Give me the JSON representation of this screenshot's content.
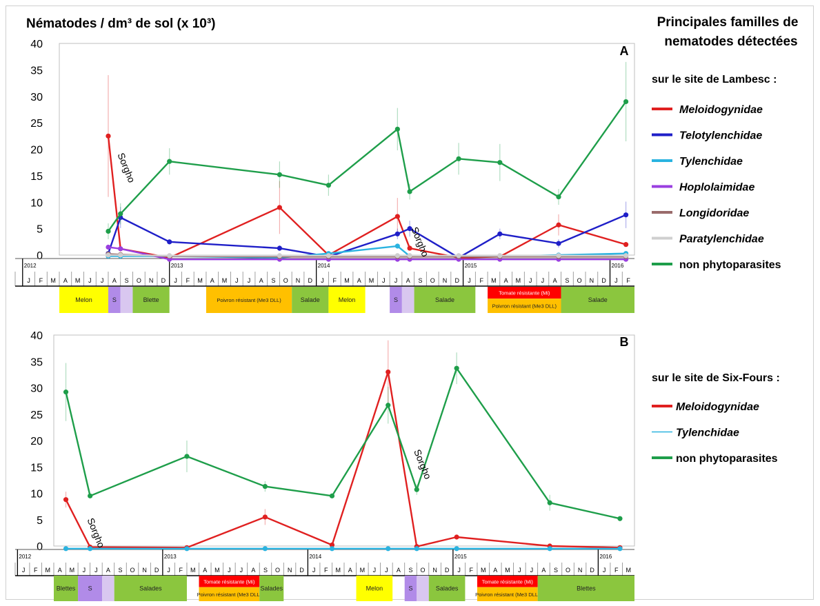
{
  "header": {
    "title": "Nématodes / dm³ de sol (x 10³)",
    "legend_title": [
      "Principales familles de",
      "nematodes détectées"
    ]
  },
  "colors": {
    "Meloidogynidae": "#e02020",
    "Telotylenchidae": "#1f1fc8",
    "Tylenchidae": "#2ab3e0",
    "Hoplolaimidae": "#9a3fe0",
    "Longidoridae": "#9a6b6b",
    "Paratylenchidae": "#cfcfcf",
    "non phytoparasites": "#1e9e4a"
  },
  "months": [
    "J",
    "F",
    "M",
    "A",
    "M",
    "J",
    "J",
    "A",
    "S",
    "O",
    "N",
    "D"
  ],
  "chart_data": [
    {
      "type": "line",
      "panel_label": "A",
      "site_label": "sur le site de Lambesc :",
      "ylim": [
        0,
        40
      ],
      "yticks": [
        0,
        5,
        10,
        15,
        20,
        25,
        30,
        35,
        40
      ],
      "x_range": [
        "2012-04",
        "2016-02"
      ],
      "years": [
        2012,
        2013,
        2014,
        2015,
        2016
      ],
      "annotations": [
        {
          "text": "Sorgho",
          "date": "2012-08",
          "y": 19
        },
        {
          "text": "Sorgho",
          "date": "2014-08",
          "y": 5
        }
      ],
      "series": [
        {
          "name": "Meloidogynidae",
          "italic": true,
          "points": [
            [
              "2012-08-01",
              22.5
            ],
            [
              "2012-09-01",
              1.2
            ],
            [
              "2013-01-01",
              -0.5
            ],
            [
              "2013-10-01",
              9
            ],
            [
              "2014-02-01",
              0
            ],
            [
              "2014-07-20",
              7.3
            ],
            [
              "2014-08-20",
              1.3
            ],
            [
              "2014-12-20",
              -0.5
            ],
            [
              "2015-04-01",
              -0.3
            ],
            [
              "2015-08-25",
              5.7
            ],
            [
              "2016-02-10",
              2
            ]
          ],
          "err": [
            11.5,
            0,
            0,
            5,
            0,
            3.5,
            0,
            0,
            0,
            2,
            0
          ]
        },
        {
          "name": "Telotylenchidae",
          "italic": true,
          "points": [
            [
              "2012-08-01",
              0.3
            ],
            [
              "2012-09-01",
              7.1
            ],
            [
              "2013-01-01",
              2.5
            ],
            [
              "2013-10-01",
              1.3
            ],
            [
              "2014-02-01",
              -0.3
            ],
            [
              "2014-07-20",
              4
            ],
            [
              "2014-08-20",
              5
            ],
            [
              "2014-12-20",
              -0.5
            ],
            [
              "2015-04-01",
              4
            ],
            [
              "2015-08-25",
              2.2
            ],
            [
              "2016-02-10",
              7.6
            ]
          ],
          "err": [
            0,
            2,
            0.5,
            0.5,
            0,
            1,
            1.5,
            0,
            1,
            0.8,
            2.5
          ]
        },
        {
          "name": "Tylenchidae",
          "italic": true,
          "points": [
            [
              "2012-08-01",
              -0.2
            ],
            [
              "2012-09-01",
              -0.2
            ],
            [
              "2013-01-01",
              -0.2
            ],
            [
              "2013-10-01",
              -0.5
            ],
            [
              "2014-02-01",
              0.3
            ],
            [
              "2014-07-20",
              1.7
            ],
            [
              "2014-08-20",
              -0.2
            ],
            [
              "2014-12-20",
              -0.3
            ],
            [
              "2015-04-01",
              -0.3
            ],
            [
              "2015-08-25",
              0
            ],
            [
              "2016-02-10",
              0.3
            ]
          ],
          "err": [
            0,
            0,
            0,
            0,
            0,
            0.5,
            0,
            0,
            0,
            0,
            0
          ]
        },
        {
          "name": "Hoplolaimidae",
          "italic": true,
          "points": [
            [
              "2012-08-01",
              1.5
            ],
            [
              "2012-09-01",
              1.2
            ],
            [
              "2013-01-01",
              -0.8
            ],
            [
              "2013-10-01",
              -0.8
            ],
            [
              "2014-02-01",
              -0.8
            ],
            [
              "2014-07-20",
              -0.8
            ],
            [
              "2014-08-20",
              -0.8
            ],
            [
              "2014-12-20",
              -0.8
            ],
            [
              "2015-04-01",
              -0.8
            ],
            [
              "2015-08-25",
              -0.8
            ],
            [
              "2016-02-10",
              -0.8
            ]
          ],
          "err": [
            0,
            0,
            0,
            0,
            0,
            0,
            0,
            0,
            0,
            0,
            0
          ]
        },
        {
          "name": "Longidoridae",
          "italic": true,
          "points": [
            [
              "2012-08-01",
              0.2
            ],
            [
              "2012-09-01",
              0.1
            ],
            [
              "2013-01-01",
              -0.2
            ],
            [
              "2013-10-01",
              -0.3
            ],
            [
              "2014-02-01",
              -0.3
            ],
            [
              "2014-07-20",
              -0.3
            ],
            [
              "2014-08-20",
              -0.3
            ],
            [
              "2014-12-20",
              -0.3
            ],
            [
              "2015-04-01",
              -0.3
            ],
            [
              "2015-08-25",
              -0.3
            ],
            [
              "2016-02-10",
              -0.3
            ]
          ],
          "err": [
            0,
            0,
            0,
            0,
            0,
            0,
            0,
            0,
            0,
            0,
            0
          ]
        },
        {
          "name": "Paratylenchidae",
          "italic": true,
          "points": [
            [
              "2012-08-01",
              0
            ],
            [
              "2012-09-01",
              0
            ],
            [
              "2013-01-01",
              -0.1
            ],
            [
              "2013-10-01",
              -0.1
            ],
            [
              "2014-02-01",
              -0.1
            ],
            [
              "2014-07-20",
              -0.1
            ],
            [
              "2014-08-20",
              -0.1
            ],
            [
              "2014-12-20",
              -0.1
            ],
            [
              "2015-04-01",
              -0.1
            ],
            [
              "2015-08-25",
              -0.1
            ],
            [
              "2016-02-10",
              -0.1
            ]
          ],
          "err": [
            0,
            0,
            0,
            0,
            0,
            0,
            0,
            0,
            0,
            0,
            0
          ]
        },
        {
          "name": "non phytoparasites",
          "italic": false,
          "points": [
            [
              "2012-08-01",
              4.5
            ],
            [
              "2012-09-01",
              7.8
            ],
            [
              "2013-01-01",
              17.7
            ],
            [
              "2013-10-01",
              15.2
            ],
            [
              "2014-02-01",
              13.2
            ],
            [
              "2014-07-20",
              23.8
            ],
            [
              "2014-08-20",
              12
            ],
            [
              "2014-12-20",
              18.2
            ],
            [
              "2015-04-01",
              17.5
            ],
            [
              "2015-08-25",
              11
            ],
            [
              "2016-02-10",
              29
            ]
          ],
          "err": [
            1.5,
            2,
            2.5,
            2.5,
            2,
            4,
            1.5,
            3,
            3.5,
            1.5,
            7.5
          ]
        }
      ],
      "crops": [
        {
          "label": "Melon",
          "start": "2012-04",
          "end": "2012-07",
          "color": "#ffff00"
        },
        {
          "label": "S",
          "start": "2012-08",
          "end": "2012-08",
          "color": "#b18be8"
        },
        {
          "label": "",
          "start": "2012-09",
          "end": "2012-09",
          "color": "#d9c7f0"
        },
        {
          "label": "Blette",
          "start": "2012-10",
          "end": "2012-12",
          "color": "#8bc63e"
        },
        {
          "label": "Poivron résistant (Me3 DLL)",
          "start": "2013-04",
          "end": "2013-10",
          "color": "#ffc000"
        },
        {
          "label": "Salade",
          "start": "2013-11",
          "end": "2014-01",
          "color": "#8bc63e"
        },
        {
          "label": "Melon",
          "start": "2014-02",
          "end": "2014-04",
          "color": "#ffff00"
        },
        {
          "label": "S",
          "start": "2014-07",
          "end": "2014-07",
          "color": "#b18be8"
        },
        {
          "label": "",
          "start": "2014-08",
          "end": "2014-08",
          "color": "#d9c7f0"
        },
        {
          "label": "Salade",
          "start": "2014-09",
          "end": "2015-01",
          "color": "#8bc63e"
        },
        {
          "label": "Tomate résistante (Mi)",
          "start": "2015-03",
          "end": "2015-08",
          "color": "#ff0000",
          "half": "top"
        },
        {
          "label": "Poivron résistant (Me3 DLL)",
          "start": "2015-03",
          "end": "2015-08",
          "color": "#ffc000",
          "half": "bottom"
        },
        {
          "label": "Salade",
          "start": "2015-09",
          "end": "2016-02",
          "color": "#8bc63e"
        }
      ]
    },
    {
      "type": "line",
      "panel_label": "B",
      "site_label": "sur le site de Six-Fours :",
      "ylim": [
        0,
        40
      ],
      "yticks": [
        0,
        5,
        10,
        15,
        20,
        25,
        30,
        35,
        40
      ],
      "x_range": [
        "2012-04",
        "2016-03"
      ],
      "years": [
        2012,
        2013,
        2014,
        2015,
        2016
      ],
      "annotations": [
        {
          "text": "Sorgho",
          "date": "2012-06",
          "y": 5
        },
        {
          "text": "Sorgho",
          "date": "2014-09",
          "y": 18
        }
      ],
      "series": [
        {
          "name": "Meloidogynidae",
          "italic": true,
          "points": [
            [
              "2012-05-01",
              8.8
            ],
            [
              "2012-07-01",
              -0.2
            ],
            [
              "2013-03-01",
              -0.3
            ],
            [
              "2013-09-15",
              5.5
            ],
            [
              "2014-03-01",
              0.2
            ],
            [
              "2014-07-20",
              33
            ],
            [
              "2014-10-01",
              -0.1
            ],
            [
              "2015-01-10",
              1.7
            ],
            [
              "2015-09-01",
              0
            ],
            [
              "2016-02-25",
              -0.3
            ]
          ],
          "err": [
            1.5,
            0,
            0,
            1.5,
            0,
            6,
            0,
            0,
            0,
            0
          ]
        },
        {
          "name": "Tylenchidae",
          "italic": true,
          "points": [
            [
              "2012-05-01",
              -0.5
            ],
            [
              "2012-07-01",
              -0.5
            ],
            [
              "2013-03-01",
              -0.5
            ],
            [
              "2013-09-15",
              -0.5
            ],
            [
              "2014-03-01",
              -0.5
            ],
            [
              "2014-07-20",
              -0.5
            ],
            [
              "2014-10-01",
              -0.5
            ],
            [
              "2015-01-10",
              -0.5
            ],
            [
              "2015-09-01",
              -0.5
            ],
            [
              "2016-02-25",
              -0.5
            ]
          ],
          "err": [
            0,
            0,
            0,
            0,
            0,
            0,
            0,
            0,
            0,
            0
          ]
        },
        {
          "name": "non phytoparasites",
          "italic": false,
          "points": [
            [
              "2012-05-01",
              29.2
            ],
            [
              "2012-07-01",
              9.5
            ],
            [
              "2013-03-01",
              17
            ],
            [
              "2013-09-15",
              11.3
            ],
            [
              "2014-03-01",
              9.5
            ],
            [
              "2014-07-20",
              26.7
            ],
            [
              "2014-10-01",
              10.7
            ],
            [
              "2015-01-10",
              33.7
            ],
            [
              "2015-09-01",
              8.2
            ],
            [
              "2016-02-25",
              5.2
            ]
          ],
          "err": [
            5.5,
            0,
            3,
            1,
            0,
            3.5,
            1,
            3,
            1.5,
            0.5
          ]
        }
      ],
      "crops": [
        {
          "label": "Blettes",
          "start": "2012-04",
          "end": "2012-05",
          "color": "#8bc63e"
        },
        {
          "label": "S",
          "start": "2012-06",
          "end": "2012-07",
          "color": "#b18be8"
        },
        {
          "label": "",
          "start": "2012-08",
          "end": "2012-08",
          "color": "#d9c7f0"
        },
        {
          "label": "Salades",
          "start": "2012-09",
          "end": "2013-02",
          "color": "#8bc63e"
        },
        {
          "label": "Tomate résistante (Mi)",
          "start": "2013-04",
          "end": "2013-08",
          "color": "#ff0000",
          "half": "top"
        },
        {
          "label": "Poivron résistant (Me3 DLL)",
          "start": "2013-04",
          "end": "2013-08",
          "color": "#ffc000",
          "half": "bottom"
        },
        {
          "label": "Salades",
          "start": "2013-09",
          "end": "2013-10",
          "color": "#8bc63e"
        },
        {
          "label": "Melon",
          "start": "2014-05",
          "end": "2014-07",
          "color": "#ffff00"
        },
        {
          "label": "S",
          "start": "2014-09",
          "end": "2014-09",
          "color": "#b18be8"
        },
        {
          "label": "",
          "start": "2014-10",
          "end": "2014-10",
          "color": "#d9c7f0"
        },
        {
          "label": "Salades",
          "start": "2014-11",
          "end": "2015-01",
          "color": "#8bc63e"
        },
        {
          "label": "Tomate résistante (Mi)",
          "start": "2015-03",
          "end": "2015-07",
          "color": "#ff0000",
          "half": "top"
        },
        {
          "label": "Poivron résistant (Me3 DLL)",
          "start": "2015-03",
          "end": "2015-07",
          "color": "#ffc000",
          "half": "bottom"
        },
        {
          "label": "Blettes",
          "start": "2015-08",
          "end": "2016-03",
          "color": "#8bc63e"
        }
      ]
    }
  ]
}
